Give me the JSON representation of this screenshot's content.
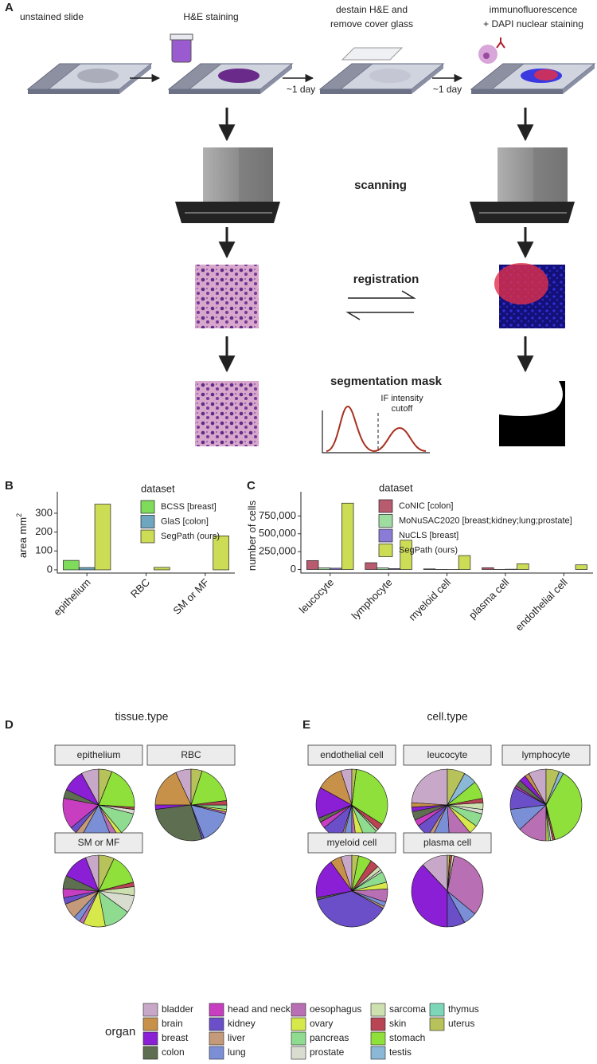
{
  "panel_a": {
    "label": "A",
    "steps": [
      "unstained slide",
      "H&E staining",
      "destain H&E and",
      "remove cover glass",
      "immunofluorescence",
      "+ DAPI nuclear staining"
    ],
    "durations": [
      "~1 day",
      "~1 day"
    ],
    "scanning": "scanning",
    "registration": "registration",
    "segmentation": "segmentation mask",
    "cutoff": [
      "IF intensity",
      "cutoff"
    ]
  },
  "chart_data": [
    {
      "type": "bar",
      "panel": "B",
      "ylabel": "area  mm",
      "ylabel_sup": "2",
      "legend_title": "dataset",
      "categories": [
        "epithelium",
        "RBC",
        "SM or MF"
      ],
      "series": [
        {
          "name": "BCSS [breast]",
          "color": "#7fdc5a",
          "values": [
            50,
            0,
            0
          ]
        },
        {
          "name": "GlaS [colon]",
          "color": "#6fa6bf",
          "values": [
            12,
            0,
            0
          ]
        },
        {
          "name": "SegPath (ours)",
          "color": "#cddc55",
          "values": [
            348,
            13,
            180
          ]
        }
      ],
      "ylim": [
        -17,
        380
      ],
      "yticks": [
        0,
        100,
        200,
        300
      ]
    },
    {
      "type": "bar",
      "panel": "C",
      "ylabel": "number of cells",
      "legend_title": "dataset",
      "categories": [
        "leucocyte",
        "lymphocyte",
        "myeloid cell",
        "plasma cell",
        "endothelial cell"
      ],
      "series": [
        {
          "name": "CoNIC [colon]",
          "color": "#b85b6e",
          "values": [
            125000,
            95000,
            8000,
            25000,
            0
          ]
        },
        {
          "name": "MoNuSAC2020 [breast;kidney;lung;prostate]",
          "color": "#9fdca0",
          "values": [
            22000,
            22000,
            2000,
            2000,
            0
          ]
        },
        {
          "name": "NuCLS [breast]",
          "color": "#8a7cd6",
          "values": [
            18000,
            12000,
            1000,
            4000,
            0
          ]
        },
        {
          "name": "SegPath (ours)",
          "color": "#cddc55",
          "values": [
            930000,
            410000,
            195000,
            80000,
            65000
          ]
        }
      ],
      "ylim": [
        -50000,
        1000000
      ],
      "yticks": [
        0,
        {
          "value": 250000,
          "label": "250,000"
        },
        {
          "value": 500000,
          "label": "500,000"
        },
        {
          "value": 750000,
          "label": "750,000"
        }
      ]
    },
    {
      "type": "pie",
      "panel": "D",
      "title": "tissue.type",
      "facets": [
        {
          "name": "epithelium",
          "values": [
            8,
            0,
            10,
            4,
            14,
            3,
            3,
            14,
            3,
            2,
            10,
            2,
            0,
            1,
            20,
            0,
            0,
            6
          ]
        },
        {
          "name": "RBC",
          "values": [
            7,
            18,
            2,
            28,
            0,
            1,
            0,
            15,
            1,
            1,
            2,
            0,
            0,
            2,
            18,
            0,
            0,
            5
          ]
        },
        {
          "name": "SM or MF",
          "values": [
            6,
            0,
            12,
            6,
            4,
            3,
            7,
            3,
            2,
            10,
            12,
            8,
            4,
            2,
            14,
            0,
            0,
            7
          ]
        }
      ]
    },
    {
      "type": "pie",
      "panel": "E",
      "title": "cell.type",
      "facets": [
        {
          "name": "endothelial cell",
          "values": [
            5,
            12,
            14,
            2,
            3,
            9,
            1,
            4,
            2,
            4,
            6,
            0,
            1,
            3,
            32,
            0,
            0,
            2
          ]
        },
        {
          "name": "leucocyte",
          "values": [
            24,
            2,
            2,
            4,
            3,
            6,
            2,
            8,
            10,
            4,
            6,
            2,
            3,
            2,
            8,
            6,
            0,
            8
          ]
        },
        {
          "name": "lymphocyte",
          "values": [
            8,
            2,
            3,
            3,
            1,
            10,
            0,
            10,
            13,
            1,
            1,
            1,
            0,
            1,
            38,
            2,
            0,
            6
          ]
        },
        {
          "name": "myeloid cell",
          "values": [
            5,
            5,
            18,
            1,
            0,
            38,
            1,
            2,
            6,
            3,
            5,
            1,
            2,
            4,
            6,
            0,
            0,
            3
          ]
        },
        {
          "name": "plasma cell",
          "values": [
            12,
            0,
            38,
            0,
            0,
            8,
            0,
            6,
            33,
            0,
            0,
            0,
            1,
            1,
            0,
            0,
            0,
            1
          ]
        }
      ]
    }
  ],
  "legend": {
    "title": "organ",
    "labels": [
      "bladder",
      "brain",
      "breast",
      "colon",
      "head and neck",
      "kidney",
      "liver",
      "lung",
      "oesophagus",
      "ovary",
      "pancreas",
      "prostate",
      "sarcoma",
      "skin",
      "stomach",
      "testis",
      "thymus",
      "uterus"
    ],
    "colors": [
      "#c8a8c8",
      "#c8914a",
      "#8b1fd6",
      "#5e6e50",
      "#c73ec0",
      "#6a4fc9",
      "#c49a7a",
      "#7a8fd6",
      "#b86fb3",
      "#d6e84a",
      "#8fdb8f",
      "#d9ddd0",
      "#cde0b0",
      "#b84454",
      "#8fe03a",
      "#8ab8d6",
      "#7ed6b8",
      "#b8c25a"
    ]
  }
}
